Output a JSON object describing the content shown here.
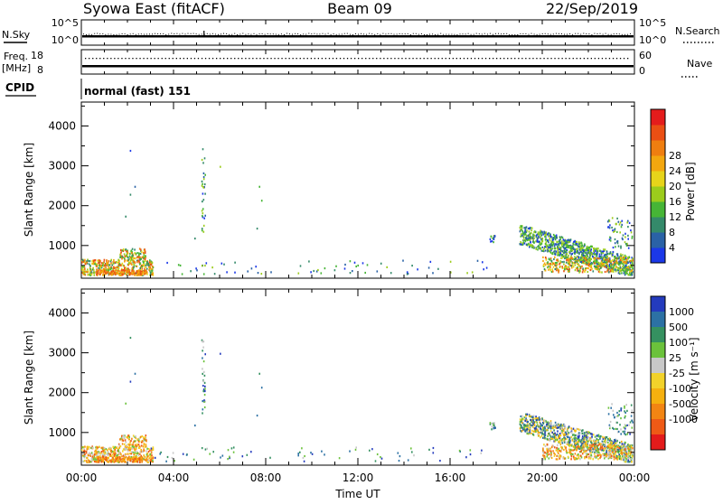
{
  "header": {
    "title": "Syowa East (fitACF)",
    "beam": "Beam 09",
    "date": "22/Sep/2019",
    "mode": "normal (fast) 151"
  },
  "strip": {
    "nsky_label": "N.Sky",
    "nsearch_label": "N.Search",
    "noise_left_ticks": [
      "10^5",
      "10^0"
    ],
    "noise_right_ticks": [
      "10^5",
      "10^0"
    ],
    "freq_label": "Freq.",
    "freq_unit": "[MHz]",
    "freq_ticks": [
      "18",
      "8"
    ],
    "nave_label": "Nave",
    "nave_ticks": [
      "60",
      "0"
    ],
    "cpid_label": "CPID"
  },
  "chart_data": [
    {
      "type": "heatmap",
      "name": "power",
      "ylabel": "Slant Range [km]",
      "xlabel": "",
      "ylim": [
        180,
        4600
      ],
      "yticks": [
        1000,
        2000,
        3000,
        4000
      ],
      "xticks": [
        "00:00",
        "04:00",
        "08:00",
        "12:00",
        "16:00",
        "20:00",
        "00:00"
      ],
      "xlim_hours": [
        0,
        24
      ],
      "colorbar": {
        "label": "Power [dB]",
        "ticks": [
          "4",
          "8",
          "12",
          "16",
          "20",
          "24",
          "28"
        ],
        "colors": [
          "#1b38e8",
          "#2a62a6",
          "#348a6a",
          "#46b536",
          "#9ccc1c",
          "#e7d41a",
          "#f3a70f",
          "#ef7e10",
          "#ea4f14",
          "#e41c1c"
        ]
      }
    },
    {
      "type": "heatmap",
      "name": "velocity",
      "ylabel": "Slant Range [km]",
      "xlabel": "Time UT",
      "ylim": [
        180,
        4600
      ],
      "yticks": [
        1000,
        2000,
        3000,
        4000
      ],
      "xticks": [
        "00:00",
        "04:00",
        "08:00",
        "12:00",
        "16:00",
        "20:00",
        "00:00"
      ],
      "xlim_hours": [
        0,
        24
      ],
      "colorbar": {
        "label": "Velocity [m s⁻¹]",
        "ticks": [
          "1000",
          "500",
          "100",
          "25",
          "-25",
          "-100",
          "-500",
          "-1000"
        ],
        "colors": [
          "#243bbd",
          "#2c71a4",
          "#359160",
          "#6bc23b",
          "#c8c8c8",
          "#f2d22a",
          "#f5b00f",
          "#f28513",
          "#ee5a16",
          "#e31b1b"
        ]
      }
    }
  ]
}
